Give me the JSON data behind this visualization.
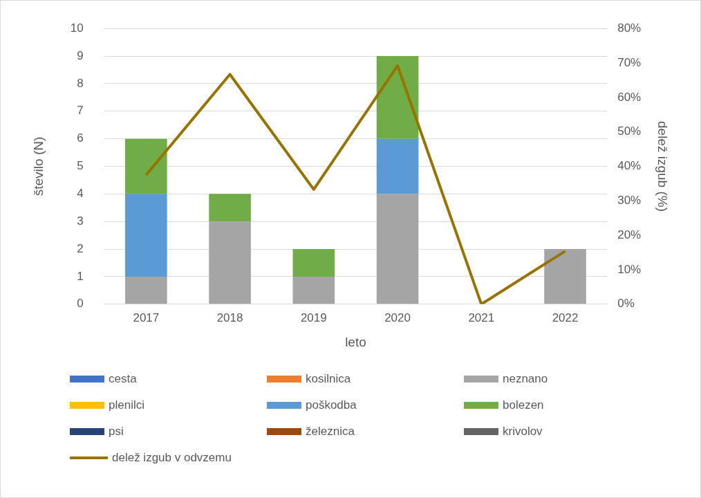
{
  "chart_data": {
    "type": "bar",
    "stacked": true,
    "xlabel": "leto",
    "ylabel": "število (N)",
    "y2label": "delež izgub (%)",
    "categories": [
      "2017",
      "2018",
      "2019",
      "2020",
      "2021",
      "2022"
    ],
    "series": [
      {
        "name": "cesta",
        "color": "#4472c4",
        "values": [
          0,
          0,
          0,
          0,
          0,
          0
        ]
      },
      {
        "name": "kosilnica",
        "color": "#ed7d31",
        "values": [
          0,
          0,
          0,
          0,
          0,
          0
        ]
      },
      {
        "name": "neznano",
        "color": "#a5a5a5",
        "values": [
          1,
          3,
          1,
          4,
          0,
          2
        ]
      },
      {
        "name": "plenilci",
        "color": "#ffc000",
        "values": [
          0,
          0,
          0,
          0,
          0,
          0
        ]
      },
      {
        "name": "poškodba",
        "color": "#5b9bd5",
        "values": [
          3,
          0,
          0,
          2,
          0,
          0
        ]
      },
      {
        "name": "bolezen",
        "color": "#70ad47",
        "values": [
          2,
          1,
          1,
          3,
          0,
          0
        ]
      },
      {
        "name": "psi",
        "color": "#264478",
        "values": [
          0,
          0,
          0,
          0,
          0,
          0
        ]
      },
      {
        "name": "železnica",
        "color": "#9e480e",
        "values": [
          0,
          0,
          0,
          0,
          0,
          0
        ]
      },
      {
        "name": "krivolov",
        "color": "#636363",
        "values": [
          0,
          0,
          0,
          0,
          0,
          0
        ]
      },
      {
        "name": "delež izgub v odvzemu",
        "type": "line",
        "axis": "y2",
        "color": "#997300",
        "values": [
          37.5,
          66.7,
          33.3,
          69.2,
          0,
          15.4
        ]
      }
    ],
    "ylim": [
      0,
      10
    ],
    "yticks": [
      0,
      1,
      2,
      3,
      4,
      5,
      6,
      7,
      8,
      9,
      10
    ],
    "y2lim": [
      0,
      80
    ],
    "y2ticks": [
      {
        "value": 0,
        "label": "0%"
      },
      {
        "value": 10,
        "label": "10%"
      },
      {
        "value": 20,
        "label": "20%"
      },
      {
        "value": 30,
        "label": "30%"
      },
      {
        "value": 40,
        "label": "40%"
      },
      {
        "value": 50,
        "label": "50%"
      },
      {
        "value": 60,
        "label": "60%"
      },
      {
        "value": 70,
        "label": "70%"
      },
      {
        "value": 80,
        "label": "80%"
      }
    ],
    "grid": "y",
    "legend": "bottom",
    "marker": "none",
    "line_style": "solid"
  }
}
